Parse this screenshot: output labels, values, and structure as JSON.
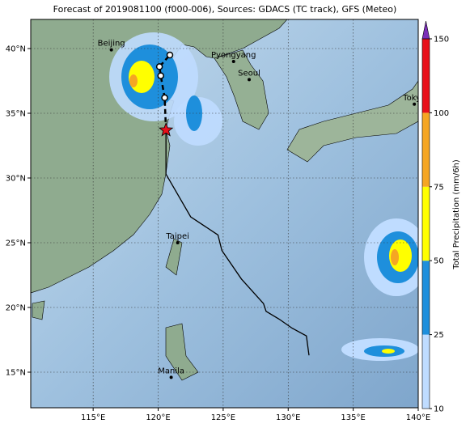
{
  "title": "Forecast of 2019081100 (f000-006), Sources: GDACS (TC track), GFS (Meteo)",
  "map": {
    "lon_range": [
      110.2,
      140
    ],
    "lat_range": [
      12.25,
      42.25
    ],
    "lon_ticks": [
      {
        "value": 115,
        "label": "115°E"
      },
      {
        "value": 120,
        "label": "120°E"
      },
      {
        "value": 125,
        "label": "125°E"
      },
      {
        "value": 130,
        "label": "130°E"
      },
      {
        "value": 135,
        "label": "135°E"
      },
      {
        "value": 140,
        "label": "140°E"
      }
    ],
    "lat_ticks": [
      {
        "value": 15,
        "label": "15°N"
      },
      {
        "value": 20,
        "label": "20°N"
      },
      {
        "value": 25,
        "label": "25°N"
      },
      {
        "value": 30,
        "label": "30°N"
      },
      {
        "value": 35,
        "label": "35°N"
      },
      {
        "value": 40,
        "label": "40°N"
      }
    ],
    "cities": [
      {
        "name": "Beijing",
        "lon": 116.4,
        "lat": 39.9
      },
      {
        "name": "Pyongyang",
        "lon": 125.8,
        "lat": 39.0
      },
      {
        "name": "Seoul",
        "lon": 127.0,
        "lat": 37.6
      },
      {
        "name": "Tokyo",
        "lon": 139.7,
        "lat": 35.7
      },
      {
        "name": "Taipei",
        "lon": 121.5,
        "lat": 25.0
      },
      {
        "name": "Manila",
        "lon": 121.0,
        "lat": 14.6
      }
    ],
    "past_track": {
      "lon": [
        120.6,
        120.6,
        122.5,
        124.6,
        124.9,
        126.4,
        128.1,
        128.3,
        129.3,
        130.3,
        131.4,
        131.6
      ],
      "lat": [
        33.7,
        30.3,
        27.0,
        25.6,
        24.4,
        22.2,
        20.3,
        19.7,
        19.1,
        18.4,
        17.8,
        16.3
      ]
    },
    "forecast_track": {
      "lon": [
        120.5,
        120.2,
        120.1,
        120.9
      ],
      "lat": [
        36.2,
        37.9,
        38.6,
        39.5
      ]
    },
    "storm_position": {
      "lon": 120.6,
      "lat": 33.7
    }
  },
  "colorbar": {
    "label": "Total Precipitation (mm/6h)",
    "levels": [
      10,
      25,
      50,
      75,
      100,
      150
    ],
    "colors": [
      "#bfdcff",
      "#1e8fdc",
      "#ffff00",
      "#f5a623",
      "#e8101a"
    ],
    "extend_color": "#7b2fb8"
  }
}
